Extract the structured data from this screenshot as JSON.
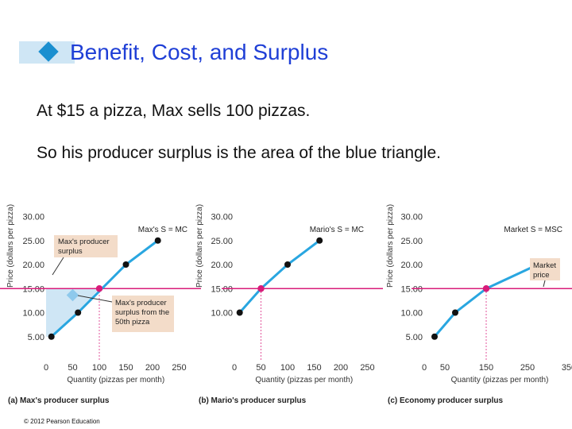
{
  "slide": {
    "title": "Benefit, Cost, and Surplus",
    "line1": "At $15 a pizza, Max sells 100 pizzas.",
    "line2": "So his producer surplus is the area of the blue triangle.",
    "copyright": "© 2012 Pearson Education"
  },
  "colors": {
    "title": "#1f3fd6",
    "supply_line": "#29a6e0",
    "price_line": "#d81b7a",
    "surplus_fill": "#cfe6f5",
    "label_box": "#f3dcc9"
  },
  "chart_data": [
    {
      "type": "line",
      "caption": "(a) Max's producer surplus",
      "xlabel": "Quantity (pizzas per month)",
      "ylabel": "Price (dollars per pizza)",
      "x_ticks": [
        "0",
        "50",
        "100",
        "150",
        "200",
        "250"
      ],
      "y_ticks": [
        "5.00",
        "10.00",
        "15.00",
        "20.00",
        "25.00",
        "30.00"
      ],
      "xlim": [
        0,
        250
      ],
      "ylim": [
        0,
        30
      ],
      "series": [
        {
          "name": "Max's S = MC",
          "x": [
            10,
            60,
            150,
            210
          ],
          "y": [
            5,
            10,
            20,
            25
          ]
        }
      ],
      "market_price": {
        "value": 15,
        "label": "15.00"
      },
      "equilibrium": {
        "x": 100,
        "y": 15
      },
      "annotations": [
        "Max's producer surplus",
        "Max's producer surplus from the 50th pizza"
      ]
    },
    {
      "type": "line",
      "caption": "(b) Mario's producer surplus",
      "xlabel": "Quantity (pizzas per month)",
      "ylabel": "Price (dollars per pizza)",
      "x_ticks": [
        "0",
        "50",
        "100",
        "150",
        "200",
        "250"
      ],
      "y_ticks": [
        "10.00",
        "15.00",
        "20.00",
        "25.00",
        "30.00"
      ],
      "xlim": [
        0,
        250
      ],
      "ylim": [
        0,
        30
      ],
      "series": [
        {
          "name": "Mario's S = MC",
          "x": [
            10,
            50,
            100,
            160
          ],
          "y": [
            10,
            15,
            20,
            25
          ]
        }
      ],
      "market_price": {
        "value": 15,
        "label": "15.00"
      },
      "equilibrium": {
        "x": 50,
        "y": 15
      },
      "annotations": []
    },
    {
      "type": "line",
      "caption": "(c) Economy producer surplus",
      "xlabel": "Quantity (pizzas per month)",
      "ylabel": "Price (dollars per pizza)",
      "x_ticks": [
        "0",
        "50",
        "150",
        "250",
        "350"
      ],
      "y_ticks": [
        "5.00",
        "10.00",
        "15.00",
        "20.00",
        "25.00",
        "30.00"
      ],
      "xlim": [
        0,
        350
      ],
      "ylim": [
        0,
        30
      ],
      "series": [
        {
          "name": "Market S = MSC",
          "x": [
            25,
            75,
            150,
            275
          ],
          "y": [
            5,
            10,
            15,
            20
          ]
        }
      ],
      "market_price": {
        "value": 15,
        "label": "15.00"
      },
      "equilibrium": {
        "x": 150,
        "y": 15
      },
      "annotations": [
        "Market price"
      ]
    }
  ]
}
